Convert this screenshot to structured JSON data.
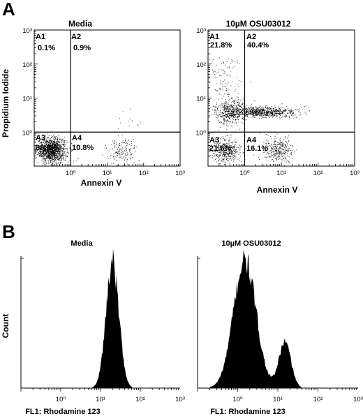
{
  "panels": {
    "A": {
      "letter": "A",
      "ylabel": "Propidium Iodide",
      "xlabel": "Annexin V",
      "plots": [
        {
          "title": "Media",
          "quadrants": [
            {
              "name": "A1",
              "value": "0.1%"
            },
            {
              "name": "A2",
              "value": "0.9%"
            },
            {
              "name": "A3",
              "value": "88.3%"
            },
            {
              "name": "A4",
              "value": "10.8%"
            }
          ]
        },
        {
          "title": "10µM OSU03012",
          "quadrants": [
            {
              "name": "A1",
              "value": "21.8%"
            },
            {
              "name": "A2",
              "value": "40.4%"
            },
            {
              "name": "A3",
              "value": "21.6%"
            },
            {
              "name": "A4",
              "value": "16.1%"
            }
          ]
        }
      ]
    },
    "B": {
      "letter": "B",
      "ylabel": "Count",
      "xlabel": "FL1: Rhodamine 123",
      "plots": [
        {
          "title": "Media"
        },
        {
          "title": "10µM OSU03012"
        }
      ]
    }
  },
  "chart_data": [
    {
      "type": "scatter",
      "title": "Media",
      "xlabel": "Annexin V",
      "ylabel": "Propidium Iodide",
      "xscale": "log",
      "yscale": "log",
      "xlim": [
        0.1,
        1000
      ],
      "ylim": [
        0.1,
        1000
      ],
      "x_ticks": [
        "10⁰",
        "10¹",
        "10²",
        "10³"
      ],
      "y_ticks": [
        "10⁰",
        "10¹",
        "10²",
        "10³"
      ],
      "gates": {
        "x": 1,
        "y": 1
      },
      "quadrant_percent": {
        "A1": 0.1,
        "A2": 0.9,
        "A3": 88.3,
        "A4": 10.8
      },
      "populations": [
        {
          "x_center": 0.3,
          "y_center": 0.3,
          "share": 88.3
        },
        {
          "x_center": 25,
          "y_center": 0.3,
          "share": 10.8
        },
        {
          "x_center": 40,
          "y_center": 2,
          "share": 0.9
        }
      ]
    },
    {
      "type": "scatter",
      "title": "10µM OSU03012",
      "xlabel": "Annexin V",
      "ylabel": "Propidium Iodide",
      "xscale": "log",
      "yscale": "log",
      "xlim": [
        0.1,
        1000
      ],
      "ylim": [
        0.1,
        1000
      ],
      "x_ticks": [
        "10⁰",
        "10¹",
        "10²",
        "10³"
      ],
      "y_ticks": [
        "10⁰",
        "10¹",
        "10²",
        "10³"
      ],
      "gates": {
        "x": 1,
        "y": 1
      },
      "quadrant_percent": {
        "A1": 21.8,
        "A2": 40.4,
        "A3": 21.6,
        "A4": 16.1
      },
      "populations": [
        {
          "x_center": 0.3,
          "y_center": 0.3,
          "share": 21.6
        },
        {
          "x_center": 8,
          "y_center": 0.3,
          "share": 16.1
        },
        {
          "x_center": 3,
          "y_center": 4,
          "share": 40.4
        },
        {
          "x_center": 0.4,
          "y_center": 4,
          "share": 21.8
        }
      ]
    },
    {
      "type": "area",
      "title": "Media",
      "xlabel": "FL1: Rhodamine 123",
      "ylabel": "Count",
      "xscale": "log",
      "xlim": [
        0.1,
        1000
      ],
      "x_ticks": [
        "10⁰",
        "10¹",
        "10²",
        "10³"
      ],
      "peaks": [
        {
          "center": 20,
          "relative_height": 1.0,
          "spread_log10": 0.16
        }
      ]
    },
    {
      "type": "area",
      "title": "10µM OSU03012",
      "xlabel": "FL1: Rhodamine 123",
      "ylabel": "Count",
      "xscale": "log",
      "xlim": [
        0.1,
        1000
      ],
      "x_ticks": [
        "10⁰",
        "10¹",
        "10²",
        "10³"
      ],
      "peaks": [
        {
          "center": 1.5,
          "relative_height": 1.0,
          "spread_log10": 0.28
        },
        {
          "center": 15,
          "relative_height": 0.36,
          "spread_log10": 0.15
        }
      ]
    }
  ]
}
